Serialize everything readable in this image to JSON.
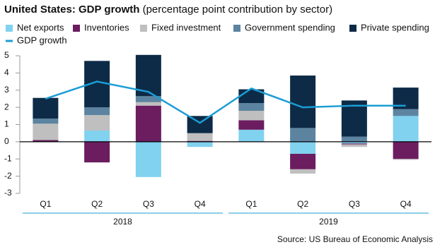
{
  "chart_data": {
    "type": "stacked-bar-line",
    "title": "United States: GDP growth",
    "subtitle": "(percentage point contribution by sector)",
    "categories": [
      "Q1",
      "Q2",
      "Q3",
      "Q4",
      "Q1",
      "Q2",
      "Q3",
      "Q4"
    ],
    "groups": [
      {
        "label": "2018",
        "span": [
          0,
          3
        ]
      },
      {
        "label": "2019",
        "span": [
          4,
          7
        ]
      }
    ],
    "series": [
      {
        "name": "Net exports",
        "color": "#80d2ef",
        "values": [
          0,
          0.65,
          -2.05,
          -0.3,
          0.7,
          -0.7,
          -0.1,
          1.5
        ]
      },
      {
        "name": "Inventories",
        "color": "#6b1d5f",
        "values": [
          0.1,
          -1.2,
          2.1,
          0.05,
          0.55,
          -0.9,
          -0.05,
          -1.0
        ]
      },
      {
        "name": "Fixed investment",
        "color": "#bfbfbf",
        "values": [
          0.95,
          0.9,
          0.2,
          0.45,
          0.55,
          -0.25,
          -0.15,
          -0.05
        ]
      },
      {
        "name": "Government spending",
        "color": "#5c84a0",
        "values": [
          0.3,
          0.45,
          0.35,
          0.0,
          0.45,
          0.8,
          0.3,
          0.4
        ]
      },
      {
        "name": "Private spending",
        "color": "#0d2b47",
        "values": [
          1.2,
          2.7,
          2.4,
          1.0,
          0.8,
          3.05,
          2.1,
          1.25
        ]
      },
      {
        "name": "GDP growth",
        "color": "#1b9dd6",
        "type": "line",
        "values": [
          2.5,
          3.5,
          2.9,
          1.1,
          3.1,
          2.0,
          2.1,
          2.1
        ]
      }
    ],
    "ylim": [
      -3,
      5
    ],
    "yticks": [
      -3,
      -2,
      -1,
      0,
      1,
      2,
      3,
      4,
      5
    ],
    "source": "Source: US Bureau of Economic Analysis"
  }
}
